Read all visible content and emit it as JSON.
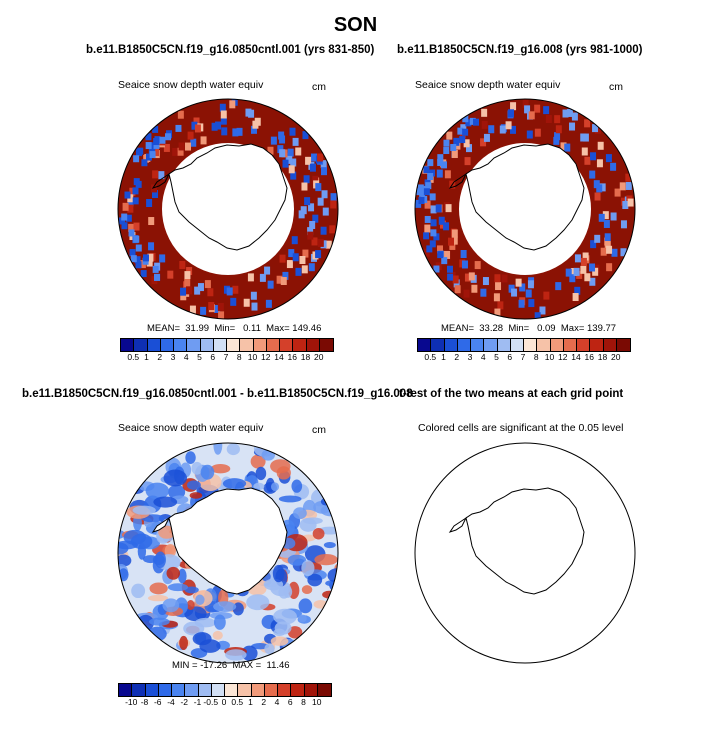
{
  "title": "SON",
  "panels": [
    {
      "id": "p1",
      "case_title": "b.e11.B1850C5CN.f19_g16.0850cntl.001 (yrs 831-850)",
      "field_label": "Seaice snow depth water equiv",
      "units": "cm",
      "stats": "MEAN=  31.99  Min=   0.11  Max= 149.46",
      "mean": 31.99,
      "min": 0.11,
      "max": 149.46,
      "colorbar": "abs"
    },
    {
      "id": "p2",
      "case_title": "b.e11.B1850C5CN.f19_g16.008 (yrs 981-1000)",
      "field_label": "Seaice snow depth water equiv",
      "units": "cm",
      "stats": "MEAN=  33.28  Min=   0.09  Max= 139.77",
      "mean": 33.28,
      "min": 0.09,
      "max": 139.77,
      "colorbar": "abs"
    },
    {
      "id": "p3",
      "case_title": "b.e11.B1850C5CN.f19_g16.0850cntl.001 - b.e11.B1850C5CN.f19_g16.008",
      "field_label": "Seaice snow depth water equiv",
      "units": "cm",
      "stats": "MIN = -17.26  MAX =  11.46",
      "min": -17.26,
      "max": 11.46,
      "colorbar": "diff"
    },
    {
      "id": "p4",
      "case_title": "t-test of the two means at each grid point",
      "field_label": "Colored cells are significant at the 0.05 level"
    }
  ],
  "colorbars": {
    "abs": {
      "labels": [
        "0.5",
        "1",
        "2",
        "3",
        "4",
        "5",
        "6",
        "7",
        "8",
        "10",
        "12",
        "14",
        "16",
        "18",
        "20"
      ],
      "colors": [
        "#08088f",
        "#0e2fb4",
        "#1a4fd6",
        "#2f6ae8",
        "#4a84f0",
        "#6f9cf2",
        "#9fbcf2",
        "#d2e0f5",
        "#fbe6d6",
        "#f6c2a8",
        "#f19a7a",
        "#e56c4d",
        "#d4402a",
        "#be2412",
        "#a01409",
        "#7a0a03"
      ]
    },
    "diff": {
      "labels": [
        "-10",
        "-8",
        "-6",
        "-4",
        "-2",
        "-1",
        "-0.5",
        "0",
        "0.5",
        "1",
        "2",
        "4",
        "6",
        "8",
        "10"
      ],
      "colors": [
        "#08088f",
        "#0e2fb4",
        "#1a4fd6",
        "#2f6ae8",
        "#4a84f0",
        "#6f9cf2",
        "#9fbcf2",
        "#d2e0f5",
        "#fbe6d6",
        "#f6c2a8",
        "#f19a7a",
        "#e56c4d",
        "#d4402a",
        "#be2412",
        "#a01409",
        "#7a0a03"
      ]
    }
  }
}
